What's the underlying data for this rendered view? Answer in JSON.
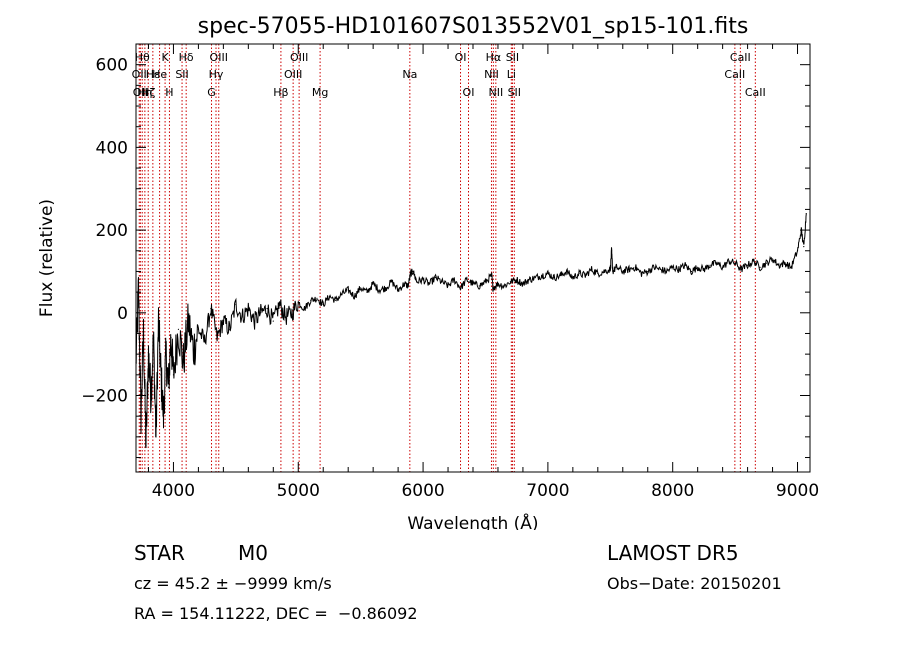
{
  "chart_data": {
    "type": "line",
    "title": "spec-57055-HD101607S013552V01_sp15-101.fits",
    "xlabel": "Wavelength (Å)",
    "ylabel": "Flux (relative)",
    "xlim": [
      3700,
      9100
    ],
    "ylim": [
      -385,
      650
    ],
    "xticks": [
      4000,
      5000,
      6000,
      7000,
      8000,
      9000
    ],
    "yticks": [
      -200,
      0,
      200,
      400,
      600
    ],
    "xtick_labels": [
      "4000",
      "5000",
      "6000",
      "7000",
      "8000",
      "9000"
    ],
    "ytick_labels": [
      "−200",
      "0",
      "200",
      "400",
      "600"
    ],
    "grid": false,
    "line_color": "#000000",
    "marker_color": "#cc0000",
    "series": [
      {
        "x": [
          3700,
          3720,
          3740,
          3760,
          3780,
          3800,
          3820,
          3840,
          3860,
          3880,
          3900,
          3920,
          3940,
          3960,
          3980,
          4000,
          4040,
          4080,
          4120,
          4160,
          4200,
          4250,
          4300,
          4350,
          4400,
          4450,
          4500,
          4550,
          4600,
          4650,
          4700,
          4750,
          4800,
          4850,
          4900,
          4950,
          5000,
          5050,
          5100,
          5150,
          5200,
          5250,
          5300,
          5350,
          5400,
          5450,
          5500,
          5550,
          5600,
          5650,
          5700,
          5750,
          5800,
          5850,
          5880,
          5900,
          5920,
          5950,
          6000,
          6050,
          6100,
          6150,
          6200,
          6250,
          6300,
          6350,
          6400,
          6450,
          6500,
          6550,
          6560,
          6600,
          6650,
          6700,
          6750,
          6800,
          6850,
          6900,
          6950,
          7000,
          7050,
          7100,
          7150,
          7200,
          7250,
          7300,
          7350,
          7400,
          7450,
          7500,
          7510,
          7520,
          7550,
          7600,
          7650,
          7700,
          7750,
          7800,
          7850,
          7900,
          7950,
          8000,
          8050,
          8100,
          8150,
          8200,
          8250,
          8300,
          8350,
          8400,
          8450,
          8500,
          8550,
          8600,
          8650,
          8700,
          8750,
          8800,
          8850,
          8900,
          8950,
          9000,
          9030,
          9050,
          9070
        ],
        "y": [
          -120,
          60,
          -250,
          -50,
          -320,
          -100,
          -200,
          -60,
          -300,
          -20,
          -150,
          -250,
          -100,
          -180,
          -60,
          -150,
          -40,
          -120,
          -20,
          -90,
          -40,
          -70,
          10,
          -60,
          -20,
          -40,
          20,
          -10,
          10,
          -20,
          0,
          10,
          -20,
          20,
          -10,
          0,
          25,
          10,
          30,
          35,
          20,
          40,
          30,
          45,
          55,
          40,
          60,
          50,
          70,
          55,
          60,
          75,
          55,
          70,
          65,
          95,
          100,
          75,
          80,
          70,
          85,
          75,
          65,
          80,
          60,
          80,
          70,
          65,
          75,
          90,
          60,
          70,
          65,
          75,
          80,
          70,
          80,
          85,
          90,
          95,
          85,
          90,
          100,
          85,
          95,
          90,
          105,
          95,
          100,
          105,
          150,
          100,
          110,
          100,
          105,
          110,
          95,
          100,
          110,
          105,
          100,
          110,
          105,
          115,
          100,
          110,
          105,
          115,
          120,
          110,
          125,
          120,
          105,
          115,
          125,
          110,
          120,
          130,
          115,
          120,
          110,
          150,
          200,
          160,
          240
        ]
      }
    ],
    "markers": [
      {
        "x": 3726,
        "label": "OII",
        "row": 1
      },
      {
        "x": 3735,
        "label": "OII",
        "row": 2
      },
      {
        "x": 3750,
        "label": "Hθ",
        "row": 0
      },
      {
        "x": 3771,
        "label": "Hη",
        "row": 2
      },
      {
        "x": 3798,
        "label": "Hζ",
        "row": 2
      },
      {
        "x": 3835,
        "label": "Hε",
        "row": 1
      },
      {
        "x": 3889,
        "label": "He",
        "row": 1
      },
      {
        "x": 3933,
        "label": "K",
        "row": 0
      },
      {
        "x": 3968,
        "label": "H",
        "row": 2
      },
      {
        "x": 4069,
        "label": "SII",
        "row": 1
      },
      {
        "x": 4102,
        "label": "Hδ",
        "row": 0
      },
      {
        "x": 4305,
        "label": "G",
        "row": 2
      },
      {
        "x": 4341,
        "label": "Hγ",
        "row": 1
      },
      {
        "x": 4363,
        "label": "OIII",
        "row": 0
      },
      {
        "x": 4861,
        "label": "Hβ",
        "row": 2
      },
      {
        "x": 4959,
        "label": "OIII",
        "row": 1
      },
      {
        "x": 5007,
        "label": "OIII",
        "row": 0
      },
      {
        "x": 5175,
        "label": "Mg",
        "row": 2
      },
      {
        "x": 5894,
        "label": "Na",
        "row": 1
      },
      {
        "x": 6300,
        "label": "OI",
        "row": 0
      },
      {
        "x": 6364,
        "label": "OI",
        "row": 2
      },
      {
        "x": 6548,
        "label": "NII",
        "row": 1
      },
      {
        "x": 6563,
        "label": "Hα",
        "row": 0
      },
      {
        "x": 6583,
        "label": "NII",
        "row": 2
      },
      {
        "x": 6707,
        "label": "Li",
        "row": 1
      },
      {
        "x": 6716,
        "label": "SII",
        "row": 0
      },
      {
        "x": 6731,
        "label": "SII",
        "row": 2
      },
      {
        "x": 8498,
        "label": "CaII",
        "row": 1
      },
      {
        "x": 8542,
        "label": "CaII",
        "row": 0
      },
      {
        "x": 8662,
        "label": "CaII",
        "row": 2
      }
    ]
  },
  "info": {
    "class_label": "STAR",
    "subclass": "M0",
    "survey": "LAMOST DR5",
    "cz_line": "cz = 45.2 ± −9999 km/s",
    "obs_date": "Obs−Date: 20150201",
    "radec_line": "RA = 154.11222, DEC =  −0.86092"
  }
}
